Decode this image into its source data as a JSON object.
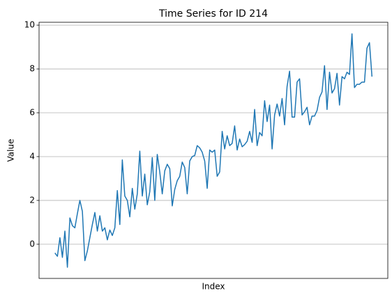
{
  "chart_data": {
    "type": "line",
    "title": "Time Series for ID 214",
    "xlabel": "Index",
    "ylabel": "Value",
    "series": [
      {
        "name": "ID 214",
        "color": "#1f77b4",
        "values": [
          -0.4,
          -0.55,
          0.3,
          -0.6,
          0.6,
          -1.05,
          1.2,
          0.85,
          0.75,
          1.4,
          2.0,
          1.5,
          -0.75,
          -0.3,
          0.3,
          0.9,
          1.45,
          0.6,
          1.3,
          0.6,
          0.75,
          0.2,
          0.65,
          0.4,
          0.75,
          2.45,
          0.9,
          3.85,
          2.2,
          2.0,
          1.25,
          2.55,
          1.6,
          2.3,
          4.25,
          2.2,
          3.2,
          1.8,
          2.4,
          3.95,
          2.0,
          4.1,
          3.3,
          2.3,
          3.35,
          3.65,
          3.45,
          1.75,
          2.5,
          2.9,
          3.1,
          3.75,
          3.5,
          2.3,
          3.8,
          4.0,
          4.05,
          4.5,
          4.4,
          4.2,
          3.8,
          2.55,
          4.3,
          4.2,
          4.3,
          3.1,
          3.3,
          5.15,
          4.35,
          4.95,
          4.5,
          4.6,
          5.4,
          4.3,
          4.8,
          4.45,
          4.55,
          4.7,
          5.15,
          4.65,
          6.15,
          4.5,
          5.1,
          4.95,
          6.55,
          5.6,
          6.35,
          4.35,
          5.9,
          6.4,
          5.85,
          6.65,
          5.45,
          7.2,
          7.9,
          5.8,
          5.8,
          7.4,
          7.55,
          5.9,
          6.05,
          6.25,
          5.45,
          5.85,
          5.85,
          6.1,
          6.7,
          6.95,
          8.15,
          6.15,
          7.85,
          6.9,
          7.1,
          7.8,
          6.35,
          7.65,
          7.55,
          7.85,
          7.75,
          9.6,
          7.15,
          7.3,
          7.3,
          7.4,
          7.4,
          8.95,
          9.2,
          7.65
        ]
      }
    ],
    "xlim": [
      -6.35,
      133.35
    ],
    "ylim": [
      -1.56,
      10.13
    ],
    "yticks": [
      0,
      2,
      4,
      6,
      8,
      10
    ],
    "grid": true
  }
}
